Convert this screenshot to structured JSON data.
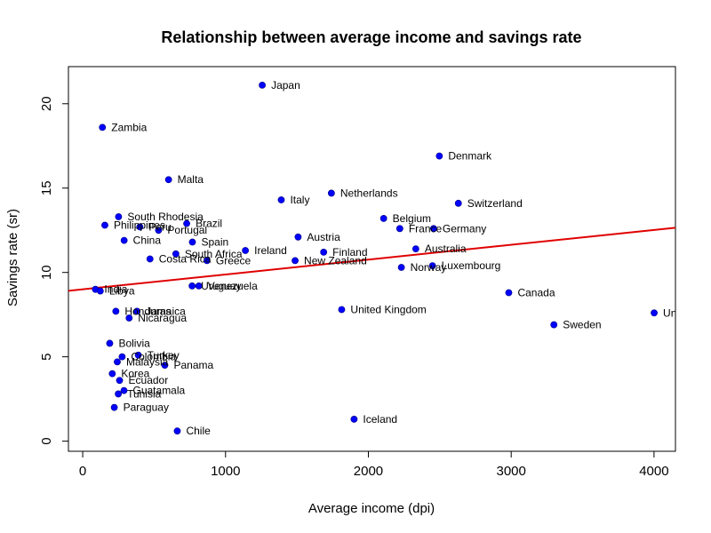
{
  "chart_data": {
    "type": "scatter",
    "title": "Relationship between average income and savings rate",
    "xlabel": "Average income (dpi)",
    "ylabel": "Savings rate (sr)",
    "xlim": [
      -100,
      4150
    ],
    "ylim": [
      -0.6,
      22.2
    ],
    "x_ticks": [
      0,
      1000,
      2000,
      3000,
      4000
    ],
    "y_ticks": [
      0,
      5,
      10,
      15,
      20
    ],
    "grid": false,
    "point_color": "#0000ff",
    "fit_line_color": "#e00000",
    "fit_line": {
      "intercept": 9.0,
      "slope": 0.00088
    },
    "points": [
      {
        "label": "Japan",
        "x": 1257,
        "y": 21.1
      },
      {
        "label": "Zambia",
        "x": 138,
        "y": 18.6
      },
      {
        "label": "Denmark",
        "x": 2497,
        "y": 16.9
      },
      {
        "label": "Malta",
        "x": 601,
        "y": 15.5
      },
      {
        "label": "Netherlands",
        "x": 1741,
        "y": 14.7
      },
      {
        "label": "Italy",
        "x": 1390,
        "y": 14.3
      },
      {
        "label": "Switzerland",
        "x": 2630,
        "y": 14.1
      },
      {
        "label": "South Rhodesia",
        "x": 251,
        "y": 13.3
      },
      {
        "label": "Belgium",
        "x": 2107,
        "y": 13.2
      },
      {
        "label": "Brazil",
        "x": 728,
        "y": 12.9
      },
      {
        "label": "Philippines",
        "x": 155,
        "y": 12.8
      },
      {
        "label": "Peru",
        "x": 400,
        "y": 12.7
      },
      {
        "label": "France",
        "x": 2220,
        "y": 12.6
      },
      {
        "label": "Germany",
        "x": 2457,
        "y": 12.6
      },
      {
        "label": "Portugal",
        "x": 531,
        "y": 12.5
      },
      {
        "label": "Austria",
        "x": 1508,
        "y": 12.1
      },
      {
        "label": "China",
        "x": 290,
        "y": 11.9
      },
      {
        "label": "Spain",
        "x": 768,
        "y": 11.8
      },
      {
        "label": "Australia",
        "x": 2332,
        "y": 11.4
      },
      {
        "label": "Ireland",
        "x": 1139,
        "y": 11.3
      },
      {
        "label": "Finland",
        "x": 1687,
        "y": 11.2
      },
      {
        "label": "South Africa",
        "x": 652,
        "y": 11.1
      },
      {
        "label": "Costa Rica",
        "x": 471,
        "y": 10.8
      },
      {
        "label": "Greece",
        "x": 870,
        "y": 10.7
      },
      {
        "label": "New Zealand",
        "x": 1487,
        "y": 10.7
      },
      {
        "label": "Luxembourg",
        "x": 2449,
        "y": 10.4
      },
      {
        "label": "Norway",
        "x": 2231,
        "y": 10.3
      },
      {
        "label": "Uruguay",
        "x": 766,
        "y": 9.2
      },
      {
        "label": "Venezuela",
        "x": 813,
        "y": 9.2
      },
      {
        "label": "India",
        "x": 89,
        "y": 9.0
      },
      {
        "label": "Libya",
        "x": 123,
        "y": 8.9
      },
      {
        "label": "Canada",
        "x": 2983,
        "y": 8.8
      },
      {
        "label": "United Kingdom",
        "x": 1813,
        "y": 7.8
      },
      {
        "label": "Honduras",
        "x": 232,
        "y": 7.7
      },
      {
        "label": "Jamaica",
        "x": 380,
        "y": 7.7
      },
      {
        "label": "United States",
        "x": 4001,
        "y": 7.6
      },
      {
        "label": "Nicaragua",
        "x": 325,
        "y": 7.3
      },
      {
        "label": "Sweden",
        "x": 3299,
        "y": 6.9
      },
      {
        "label": "Bolivia",
        "x": 189,
        "y": 5.8
      },
      {
        "label": "Turkey",
        "x": 389,
        "y": 5.1
      },
      {
        "label": "Colombia",
        "x": 276,
        "y": 5.0
      },
      {
        "label": "Malaysia",
        "x": 242,
        "y": 4.7
      },
      {
        "label": "Panama",
        "x": 575,
        "y": 4.5
      },
      {
        "label": "Korea",
        "x": 207,
        "y": 4.0
      },
      {
        "label": "Ecuador",
        "x": 258,
        "y": 3.6
      },
      {
        "label": "Guatamala",
        "x": 289,
        "y": 3.0
      },
      {
        "label": "Tunisia",
        "x": 249,
        "y": 2.8
      },
      {
        "label": "Paraguay",
        "x": 221,
        "y": 2.0
      },
      {
        "label": "Iceland",
        "x": 1900,
        "y": 1.3
      },
      {
        "label": "Chile",
        "x": 662,
        "y": 0.6
      }
    ]
  }
}
